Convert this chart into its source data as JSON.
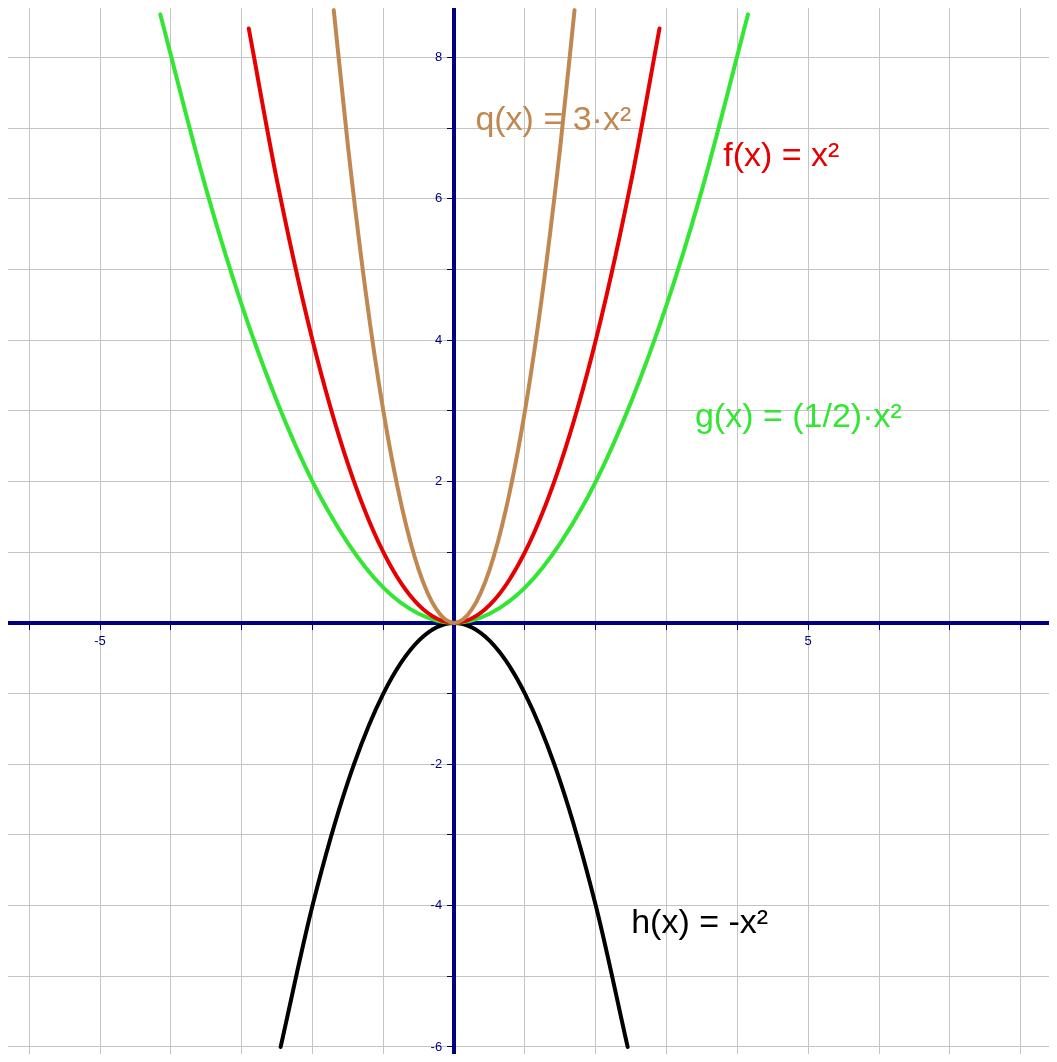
{
  "chart_data": {
    "type": "line",
    "xlim": [
      -6.3,
      8.4
    ],
    "ylim": [
      -6.1,
      8.7
    ],
    "xticks": [
      {
        "value": -6,
        "label": null
      },
      {
        "value": -5,
        "label": "-5"
      },
      {
        "value": -4,
        "label": null
      },
      {
        "value": -3,
        "label": null
      },
      {
        "value": -2,
        "label": null
      },
      {
        "value": -1,
        "label": null
      },
      {
        "value": 0,
        "label": null
      },
      {
        "value": 1,
        "label": null
      },
      {
        "value": 2,
        "label": null
      },
      {
        "value": 3,
        "label": null
      },
      {
        "value": 4,
        "label": null
      },
      {
        "value": 5,
        "label": "5"
      },
      {
        "value": 6,
        "label": null
      },
      {
        "value": 7,
        "label": null
      },
      {
        "value": 8,
        "label": null
      }
    ],
    "yticks": [
      {
        "value": -6,
        "label": "-6"
      },
      {
        "value": -5,
        "label": null
      },
      {
        "value": -4,
        "label": "-4"
      },
      {
        "value": -3,
        "label": null
      },
      {
        "value": -2,
        "label": "-2"
      },
      {
        "value": -1,
        "label": null
      },
      {
        "value": 0,
        "label": null
      },
      {
        "value": 1,
        "label": null
      },
      {
        "value": 2,
        "label": "2"
      },
      {
        "value": 3,
        "label": null
      },
      {
        "value": 4,
        "label": "4"
      },
      {
        "value": 5,
        "label": null
      },
      {
        "value": 6,
        "label": "6"
      },
      {
        "value": 7,
        "label": null
      },
      {
        "value": 8,
        "label": "8"
      }
    ],
    "grid": true,
    "legend": false,
    "marker": "none",
    "line_style": "solid",
    "series": [
      {
        "name": "q(x) = 3·x²",
        "color": "#c08850",
        "x": [
          -1.7,
          -1.5,
          -1.25,
          -1,
          -0.75,
          -0.5,
          -0.25,
          0,
          0.25,
          0.5,
          0.75,
          1,
          1.25,
          1.5,
          1.7
        ],
        "values": [
          8.67,
          6.75,
          4.69,
          3,
          1.69,
          0.75,
          0.19,
          0,
          0.19,
          0.75,
          1.69,
          3,
          4.69,
          6.75,
          8.67
        ]
      },
      {
        "name": "f(x) = x²",
        "color": "#e60000",
        "x": [
          -2.9,
          -2.5,
          -2,
          -1.5,
          -1,
          -0.5,
          0,
          0.5,
          1,
          1.5,
          2,
          2.5,
          2.9
        ],
        "values": [
          8.41,
          6.25,
          4,
          2.25,
          1,
          0.25,
          0,
          0.25,
          1,
          2.25,
          4,
          6.25,
          8.41
        ]
      },
      {
        "name": "g(x) = (1/2)·x²",
        "color": "#33e633",
        "x": [
          -4.15,
          -3.5,
          -3,
          -2.5,
          -2,
          -1.5,
          -1,
          -0.5,
          0,
          0.5,
          1,
          1.5,
          2,
          2.5,
          3,
          3.5,
          4.15
        ],
        "values": [
          8.61,
          6.13,
          4.5,
          3.13,
          2,
          1.13,
          0.5,
          0.13,
          0,
          0.13,
          0.5,
          1.13,
          2,
          3.13,
          4.5,
          6.13,
          8.61
        ]
      },
      {
        "name": "h(x) = -x²",
        "color": "#000000",
        "x": [
          -2.45,
          -2,
          -1.5,
          -1,
          -0.5,
          0,
          0.5,
          1,
          1.5,
          2,
          2.45
        ],
        "values": [
          -6,
          -4,
          -2.25,
          -1,
          -0.25,
          0,
          -0.25,
          -1,
          -2.25,
          -4,
          -6
        ]
      }
    ]
  }
}
